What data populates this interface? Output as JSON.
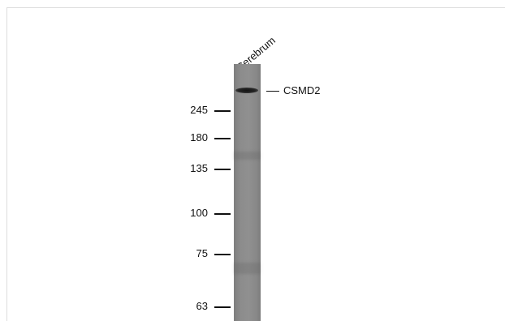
{
  "lane": {
    "label": "Cerebrum"
  },
  "markers": [
    {
      "label": "245"
    },
    {
      "label": "180"
    },
    {
      "label": "135"
    },
    {
      "label": "100"
    },
    {
      "label": "75"
    },
    {
      "label": "63"
    }
  ],
  "band": {
    "label": "CSMD2"
  },
  "colors": {
    "background": "#ffffff",
    "frame": "#dcdcdc",
    "lane": "#8c8c8c",
    "band": "#1a1a1a",
    "text": "#111111"
  }
}
